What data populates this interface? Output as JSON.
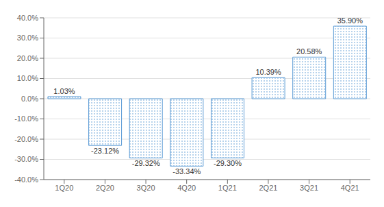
{
  "chart_data": {
    "type": "bar",
    "categories": [
      "1Q20",
      "2Q20",
      "3Q20",
      "4Q20",
      "1Q21",
      "2Q21",
      "3Q21",
      "4Q21"
    ],
    "values": [
      1.03,
      -23.12,
      -29.32,
      -33.34,
      -29.3,
      10.39,
      20.58,
      35.9
    ],
    "value_labels": [
      "1.03%",
      "-23.12%",
      "-29.32%",
      "-33.34%",
      "-29.30%",
      "10.39%",
      "20.58%",
      "35.90%"
    ],
    "data_labels": true,
    "color": "#5B9BD5",
    "ylim": [
      -40,
      40
    ],
    "yticks": [
      {
        "value": -40,
        "label": "-40.0%"
      },
      {
        "value": -30,
        "label": "-30.0%"
      },
      {
        "value": -20,
        "label": "-20.0%"
      },
      {
        "value": -10,
        "label": "-10.0%"
      },
      {
        "value": 0,
        "label": "0.0%"
      },
      {
        "value": 10,
        "label": "10.0%"
      },
      {
        "value": 20,
        "label": "20.0%"
      },
      {
        "value": 30,
        "label": "30.0%"
      },
      {
        "value": 40,
        "label": "40.0%"
      }
    ],
    "grid": true
  }
}
